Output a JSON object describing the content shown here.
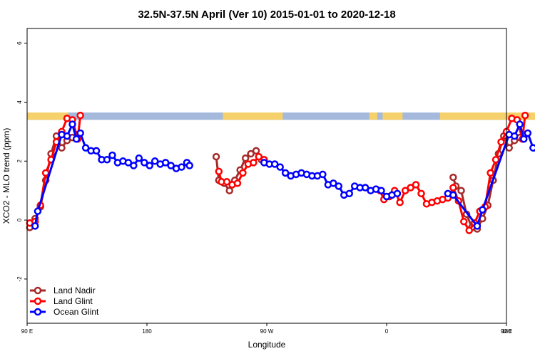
{
  "chart_data": {
    "type": "line",
    "title": "32.5N-37.5N April (Ver 10)   2015-01-01 to 2020-12-18",
    "xlabel": "Longitude",
    "ylabel": "XCO2 - MLO trend (ppm)",
    "xlim": [
      90,
      450
    ],
    "ylim": [
      -3.5,
      6.5
    ],
    "x_ticks": [
      90,
      180,
      270,
      360,
      450,
      540
    ],
    "x_tick_labels": [
      "90 E",
      "180",
      "90 W",
      "0",
      "90 E",
      "180"
    ],
    "y_ticks": [
      -2,
      0,
      2,
      4,
      6
    ],
    "y_tick_labels": [
      "-2",
      "0",
      "2",
      "4",
      "6"
    ],
    "legend_position": "bottom-left",
    "surface_band": {
      "y_range": [
        3.4,
        3.65
      ],
      "land_color": "#f5d06b",
      "ocean_color": "#a4b9dc",
      "land_segments": [
        [
          90,
          121
        ],
        [
          237,
          282
        ],
        [
          347,
          353
        ],
        [
          357,
          372
        ],
        [
          400,
          473
        ],
        [
          483,
          488
        ]
      ]
    },
    "series": [
      {
        "name": "Land Nadir",
        "color": "#a52a2a",
        "points": [
          [
            92,
            -0.25
          ],
          [
            96,
            0.05
          ],
          [
            100,
            0.45
          ],
          [
            104,
            1.35
          ],
          [
            108,
            2.25
          ],
          [
            112,
            2.85
          ],
          [
            116,
            2.45
          ],
          [
            120,
            2.7
          ],
          [
            124,
            2.8
          ],
          [
            128,
            2.9
          ],
          [
            232,
            2.15
          ],
          [
            234,
            1.35
          ],
          [
            238,
            1.25
          ],
          [
            242,
            1.0
          ],
          [
            246,
            1.35
          ],
          [
            250,
            1.7
          ],
          [
            254,
            2.1
          ],
          [
            258,
            2.25
          ],
          [
            262,
            2.35
          ],
          [
            266,
            2.05
          ],
          [
            410,
            1.45
          ],
          [
            412,
            1.15
          ],
          [
            416,
            1.0
          ],
          [
            420,
            0.2
          ],
          [
            424,
            -0.25
          ],
          [
            428,
            -0.3
          ],
          [
            432,
            0.05
          ],
          [
            436,
            0.5
          ],
          [
            440,
            1.35
          ],
          [
            444,
            2.25
          ],
          [
            448,
            2.85
          ],
          [
            452,
            2.45
          ],
          [
            456,
            2.7
          ],
          [
            460,
            2.8
          ],
          [
            464,
            2.9
          ]
        ]
      },
      {
        "name": "Land Glint",
        "color": "#ff0000",
        "points": [
          [
            92,
            -0.1
          ],
          [
            96,
            -0.05
          ],
          [
            100,
            0.5
          ],
          [
            104,
            1.6
          ],
          [
            108,
            2.05
          ],
          [
            112,
            2.65
          ],
          [
            116,
            3.0
          ],
          [
            120,
            3.45
          ],
          [
            124,
            3.4
          ],
          [
            128,
            2.75
          ],
          [
            130,
            3.55
          ],
          [
            234,
            1.65
          ],
          [
            236,
            1.3
          ],
          [
            240,
            1.3
          ],
          [
            244,
            1.2
          ],
          [
            248,
            1.25
          ],
          [
            252,
            1.6
          ],
          [
            256,
            1.9
          ],
          [
            260,
            1.95
          ],
          [
            264,
            2.15
          ],
          [
            268,
            2.05
          ],
          [
            355,
            1.0
          ],
          [
            358,
            0.7
          ],
          [
            362,
            0.8
          ],
          [
            366,
            1.0
          ],
          [
            370,
            0.6
          ],
          [
            374,
            1.0
          ],
          [
            378,
            1.1
          ],
          [
            382,
            1.2
          ],
          [
            386,
            0.9
          ],
          [
            390,
            0.55
          ],
          [
            394,
            0.6
          ],
          [
            398,
            0.65
          ],
          [
            402,
            0.7
          ],
          [
            406,
            0.75
          ],
          [
            410,
            1.1
          ],
          [
            414,
            0.65
          ],
          [
            418,
            -0.05
          ],
          [
            422,
            -0.35
          ],
          [
            426,
            -0.1
          ],
          [
            430,
            0.3
          ],
          [
            434,
            0.45
          ],
          [
            438,
            1.6
          ],
          [
            442,
            2.05
          ],
          [
            446,
            2.65
          ],
          [
            450,
            3.0
          ],
          [
            454,
            3.45
          ],
          [
            458,
            3.4
          ],
          [
            462,
            2.75
          ],
          [
            464,
            3.55
          ]
        ]
      },
      {
        "name": "Ocean Glint",
        "color": "#0000ff",
        "points": [
          [
            96,
            -0.2
          ],
          [
            98,
            0.3
          ],
          [
            116,
            2.9
          ],
          [
            120,
            2.85
          ],
          [
            124,
            3.25
          ],
          [
            127,
            2.75
          ],
          [
            130,
            2.95
          ],
          [
            134,
            2.45
          ],
          [
            138,
            2.35
          ],
          [
            142,
            2.35
          ],
          [
            146,
            2.05
          ],
          [
            150,
            2.05
          ],
          [
            154,
            2.2
          ],
          [
            158,
            1.95
          ],
          [
            162,
            2.0
          ],
          [
            166,
            1.95
          ],
          [
            170,
            1.85
          ],
          [
            174,
            2.1
          ],
          [
            178,
            1.95
          ],
          [
            182,
            1.85
          ],
          [
            186,
            2.0
          ],
          [
            190,
            1.9
          ],
          [
            194,
            1.95
          ],
          [
            198,
            1.85
          ],
          [
            202,
            1.75
          ],
          [
            206,
            1.8
          ],
          [
            210,
            1.95
          ],
          [
            212,
            1.85
          ],
          [
            268,
            1.95
          ],
          [
            272,
            1.9
          ],
          [
            276,
            1.9
          ],
          [
            280,
            1.8
          ],
          [
            284,
            1.6
          ],
          [
            288,
            1.5
          ],
          [
            292,
            1.55
          ],
          [
            296,
            1.6
          ],
          [
            300,
            1.55
          ],
          [
            304,
            1.5
          ],
          [
            308,
            1.5
          ],
          [
            312,
            1.55
          ],
          [
            316,
            1.2
          ],
          [
            320,
            1.25
          ],
          [
            324,
            1.15
          ],
          [
            328,
            0.85
          ],
          [
            332,
            0.9
          ],
          [
            336,
            1.15
          ],
          [
            340,
            1.1
          ],
          [
            344,
            1.1
          ],
          [
            348,
            1.0
          ],
          [
            352,
            1.05
          ],
          [
            356,
            1.0
          ],
          [
            360,
            0.8
          ],
          [
            364,
            0.85
          ],
          [
            368,
            0.9
          ],
          [
            406,
            0.9
          ],
          [
            410,
            0.85
          ],
          [
            428,
            -0.2
          ],
          [
            432,
            0.35
          ],
          [
            452,
            2.9
          ],
          [
            456,
            2.85
          ],
          [
            460,
            3.25
          ],
          [
            463,
            2.75
          ],
          [
            466,
            2.95
          ],
          [
            470,
            2.45
          ],
          [
            474,
            2.35
          ],
          [
            478,
            2.35
          ],
          [
            482,
            2.05
          ],
          [
            486,
            2.05
          ],
          [
            490,
            2.2
          ],
          [
            494,
            1.95
          ]
        ]
      }
    ]
  }
}
